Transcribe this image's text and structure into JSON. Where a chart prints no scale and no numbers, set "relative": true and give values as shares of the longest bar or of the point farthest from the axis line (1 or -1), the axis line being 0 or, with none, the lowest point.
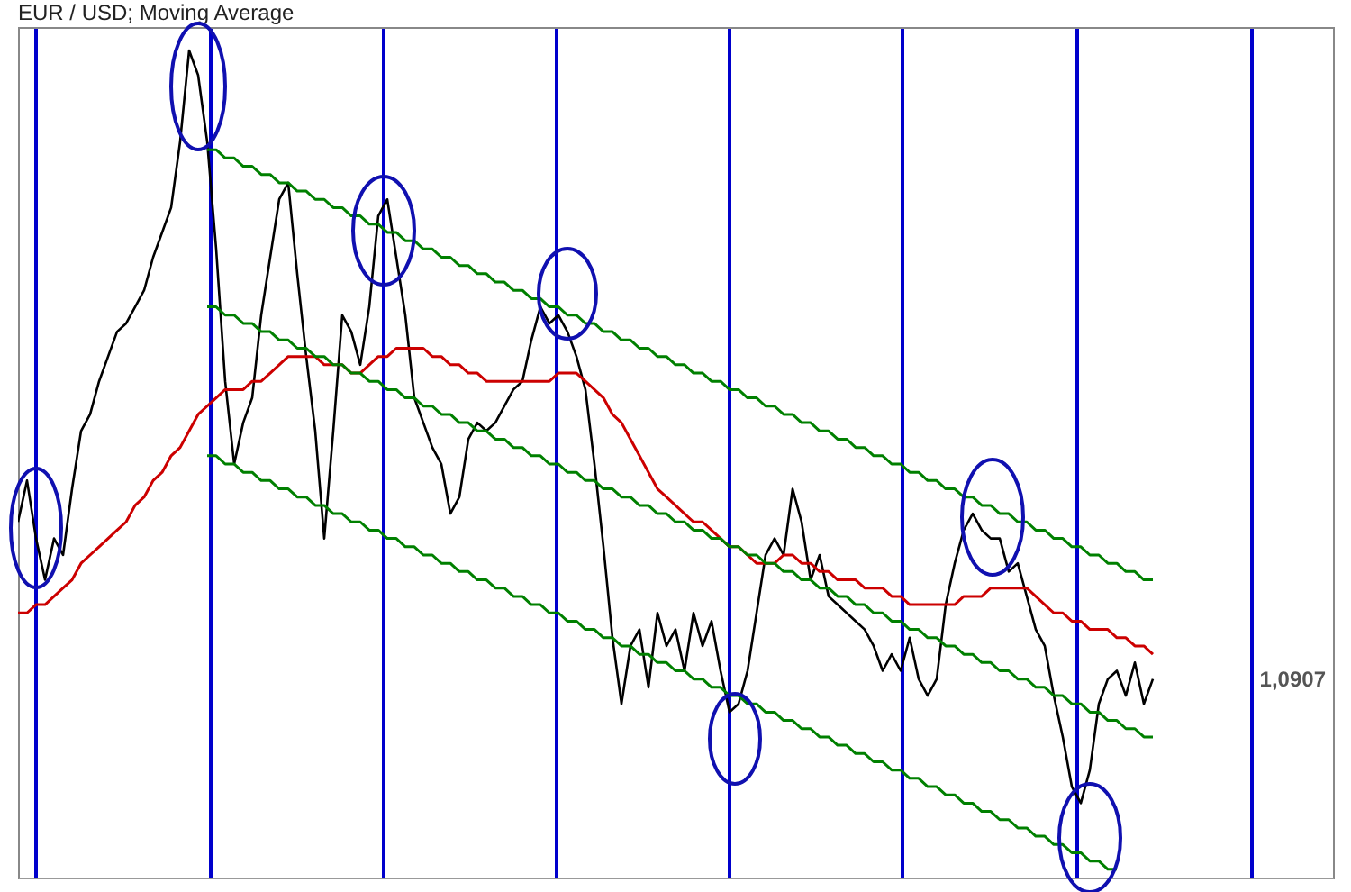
{
  "chart_data": {
    "type": "line",
    "title": "EUR / USD; Moving Average",
    "relative": true,
    "legend": false,
    "categories": [
      null,
      null,
      null,
      null,
      null,
      null,
      null,
      null,
      null,
      null,
      null,
      null,
      null,
      null,
      null,
      null,
      null,
      null,
      null,
      null,
      null,
      null,
      null,
      null,
      null,
      null,
      null,
      null,
      null,
      null,
      null,
      null,
      null,
      null,
      null,
      null,
      null,
      null,
      null,
      null,
      null,
      null,
      null,
      null,
      null,
      null,
      null,
      null,
      null,
      null,
      null,
      null,
      null,
      null,
      null,
      null,
      null,
      null,
      null,
      null,
      null,
      null,
      null,
      null,
      null,
      null,
      null,
      null,
      null,
      null,
      null,
      null,
      null,
      null,
      null,
      null,
      null,
      null,
      null,
      null,
      null,
      null,
      null,
      null,
      null,
      null,
      null,
      null,
      null,
      null,
      null,
      null,
      null,
      null,
      null,
      null,
      null,
      null,
      null,
      null,
      null,
      null,
      null,
      null,
      null,
      null,
      null,
      null,
      null,
      null,
      null,
      null,
      null,
      null,
      null,
      null,
      null,
      null,
      null,
      null,
      null,
      null,
      null,
      null,
      null,
      null,
      null,
      null,
      null,
      null,
      null,
      null,
      null,
      null,
      null,
      null,
      null,
      null,
      null,
      null,
      null,
      null,
      null,
      null,
      null,
      null,
      null
    ],
    "series": [
      {
        "color": "#000000",
        "values": [
          0.43,
          0.48,
          0.41,
          0.36,
          0.41,
          0.39,
          0.47,
          0.54,
          0.56,
          0.6,
          0.63,
          0.66,
          0.67,
          0.69,
          0.71,
          0.75,
          0.78,
          0.81,
          0.89,
          1.0,
          0.97,
          0.89,
          0.76,
          0.6,
          0.5,
          0.55,
          0.58,
          0.68,
          0.75,
          0.82,
          0.84,
          0.73,
          0.63,
          0.54,
          0.41,
          0.54,
          0.68,
          0.66,
          0.62,
          0.69,
          0.8,
          0.82,
          0.75,
          0.68,
          0.58,
          0.55,
          0.52,
          0.5,
          0.44,
          0.46,
          0.53,
          0.55,
          0.54,
          0.55,
          0.57,
          0.59,
          0.6,
          0.65,
          0.69,
          0.67,
          0.68,
          0.66,
          0.63,
          0.59,
          0.5,
          0.4,
          0.29,
          0.21,
          0.28,
          0.3,
          0.23,
          0.32,
          0.28,
          0.3,
          0.25,
          0.32,
          0.28,
          0.31,
          0.25,
          0.2,
          0.21,
          0.25,
          0.32,
          0.39,
          0.41,
          0.39,
          0.47,
          0.43,
          0.36,
          0.39,
          0.34,
          0.33,
          0.32,
          0.31,
          0.3,
          0.28,
          0.25,
          0.27,
          0.25,
          0.29,
          0.24,
          0.22,
          0.24,
          0.33,
          0.38,
          0.42,
          0.44,
          0.42,
          0.41,
          0.41,
          0.37,
          0.38,
          0.34,
          0.3,
          0.28,
          0.22,
          0.17,
          0.11,
          0.09,
          0.13,
          0.21,
          0.24,
          0.25,
          0.22,
          0.26,
          0.21,
          0.24,
          null,
          null,
          null,
          null,
          null,
          null,
          null,
          null,
          null,
          null,
          null,
          null,
          null,
          null,
          null,
          null,
          null,
          null,
          null,
          null
        ]
      },
      {
        "color": "#cc0000",
        "values": [
          0.32,
          0.32,
          0.33,
          0.33,
          0.34,
          0.35,
          0.36,
          0.38,
          0.39,
          0.4,
          0.41,
          0.42,
          0.43,
          0.45,
          0.46,
          0.48,
          0.49,
          0.51,
          0.52,
          0.54,
          0.56,
          0.57,
          0.58,
          0.59,
          0.59,
          0.59,
          0.6,
          0.6,
          0.61,
          0.62,
          0.63,
          0.63,
          0.63,
          0.63,
          0.62,
          0.62,
          0.62,
          0.61,
          0.61,
          0.62,
          0.63,
          0.63,
          0.64,
          0.64,
          0.64,
          0.64,
          0.63,
          0.63,
          0.62,
          0.62,
          0.61,
          0.61,
          0.6,
          0.6,
          0.6,
          0.6,
          0.6,
          0.6,
          0.6,
          0.6,
          0.61,
          0.61,
          0.61,
          0.6,
          0.59,
          0.58,
          0.56,
          0.55,
          0.53,
          0.51,
          0.49,
          0.47,
          0.46,
          0.45,
          0.44,
          0.43,
          0.43,
          0.42,
          0.41,
          0.4,
          0.4,
          0.39,
          0.38,
          0.38,
          0.38,
          0.39,
          0.39,
          0.38,
          0.38,
          0.37,
          0.37,
          0.36,
          0.36,
          0.36,
          0.35,
          0.35,
          0.35,
          0.34,
          0.34,
          0.33,
          0.33,
          0.33,
          0.33,
          0.33,
          0.33,
          0.34,
          0.34,
          0.34,
          0.35,
          0.35,
          0.35,
          0.35,
          0.35,
          0.34,
          0.33,
          0.32,
          0.32,
          0.31,
          0.31,
          0.3,
          0.3,
          0.3,
          0.29,
          0.29,
          0.28,
          0.28,
          0.27,
          null,
          null,
          null,
          null,
          null,
          null,
          null,
          null,
          null,
          null,
          null,
          null,
          null,
          null,
          null,
          null,
          null,
          null,
          null,
          null
        ]
      },
      {
        "color": "#008000",
        "values": [
          null,
          null,
          null,
          null,
          null,
          null,
          null,
          null,
          null,
          null,
          null,
          null,
          null,
          null,
          null,
          null,
          null,
          null,
          null,
          null,
          null,
          0.88,
          0.88,
          0.87,
          0.87,
          0.86,
          0.86,
          0.85,
          0.85,
          0.84,
          0.84,
          0.83,
          0.83,
          0.82,
          0.82,
          0.81,
          0.81,
          0.8,
          0.8,
          0.79,
          0.79,
          0.78,
          0.78,
          0.77,
          0.77,
          0.76,
          0.76,
          0.75,
          0.75,
          0.74,
          0.74,
          0.73,
          0.73,
          0.72,
          0.72,
          0.71,
          0.71,
          0.7,
          0.7,
          0.69,
          0.69,
          0.68,
          0.68,
          0.67,
          0.67,
          0.66,
          0.66,
          0.65,
          0.65,
          0.64,
          0.64,
          0.63,
          0.63,
          0.62,
          0.62,
          0.61,
          0.61,
          0.6,
          0.6,
          0.59,
          0.59,
          0.58,
          0.58,
          0.57,
          0.57,
          0.56,
          0.56,
          0.55,
          0.55,
          0.54,
          0.54,
          0.53,
          0.53,
          0.52,
          0.52,
          0.51,
          0.51,
          0.5,
          0.5,
          0.49,
          0.49,
          0.48,
          0.48,
          0.47,
          0.47,
          0.46,
          0.46,
          0.45,
          0.45,
          0.44,
          0.44,
          0.43,
          0.43,
          0.42,
          0.42,
          0.41,
          0.41,
          0.4,
          0.4,
          0.39,
          0.39,
          0.38,
          0.38,
          0.37,
          0.37,
          0.36,
          0.36,
          null,
          null,
          null,
          null,
          null,
          null,
          null,
          null,
          null,
          null,
          null,
          null,
          null,
          null,
          null,
          null,
          null,
          null,
          null,
          null
        ]
      },
      {
        "color": "#008000",
        "values": [
          null,
          null,
          null,
          null,
          null,
          null,
          null,
          null,
          null,
          null,
          null,
          null,
          null,
          null,
          null,
          null,
          null,
          null,
          null,
          null,
          null,
          0.69,
          0.69,
          0.68,
          0.68,
          0.67,
          0.67,
          0.66,
          0.66,
          0.65,
          0.65,
          0.64,
          0.64,
          0.63,
          0.63,
          0.62,
          0.62,
          0.61,
          0.61,
          0.6,
          0.6,
          0.59,
          0.59,
          0.58,
          0.58,
          0.57,
          0.57,
          0.56,
          0.56,
          0.55,
          0.55,
          0.54,
          0.54,
          0.53,
          0.53,
          0.52,
          0.52,
          0.51,
          0.51,
          0.5,
          0.5,
          0.49,
          0.49,
          0.48,
          0.48,
          0.47,
          0.47,
          0.46,
          0.46,
          0.45,
          0.45,
          0.44,
          0.44,
          0.43,
          0.43,
          0.42,
          0.42,
          0.41,
          0.41,
          0.4,
          0.4,
          0.39,
          0.39,
          0.38,
          0.38,
          0.37,
          0.37,
          0.36,
          0.36,
          0.35,
          0.35,
          0.34,
          0.34,
          0.33,
          0.33,
          0.32,
          0.32,
          0.31,
          0.31,
          0.3,
          0.3,
          0.29,
          0.29,
          0.28,
          0.28,
          0.27,
          0.27,
          0.26,
          0.26,
          0.25,
          0.25,
          0.24,
          0.24,
          0.23,
          0.23,
          0.22,
          0.22,
          0.21,
          0.21,
          0.2,
          0.2,
          0.19,
          0.19,
          0.18,
          0.18,
          0.17,
          0.17,
          null,
          null,
          null,
          null,
          null,
          null,
          null,
          null,
          null,
          null,
          null,
          null,
          null,
          null,
          null,
          null,
          null,
          null,
          null,
          null
        ]
      },
      {
        "color": "#008000",
        "values": [
          null,
          null,
          null,
          null,
          null,
          null,
          null,
          null,
          null,
          null,
          null,
          null,
          null,
          null,
          null,
          null,
          null,
          null,
          null,
          null,
          null,
          0.51,
          0.51,
          0.5,
          0.5,
          0.49,
          0.49,
          0.48,
          0.48,
          0.47,
          0.47,
          0.46,
          0.46,
          0.45,
          0.45,
          0.44,
          0.44,
          0.43,
          0.43,
          0.42,
          0.42,
          0.41,
          0.41,
          0.4,
          0.4,
          0.39,
          0.39,
          0.38,
          0.38,
          0.37,
          0.37,
          0.36,
          0.36,
          0.35,
          0.35,
          0.34,
          0.34,
          0.33,
          0.33,
          0.32,
          0.32,
          0.31,
          0.31,
          0.3,
          0.3,
          0.29,
          0.29,
          0.28,
          0.28,
          0.27,
          0.27,
          0.26,
          0.26,
          0.25,
          0.25,
          0.24,
          0.24,
          0.23,
          0.23,
          0.22,
          0.22,
          0.21,
          0.21,
          0.2,
          0.2,
          0.19,
          0.19,
          0.18,
          0.18,
          0.17,
          0.17,
          0.16,
          0.16,
          0.15,
          0.15,
          0.14,
          0.14,
          0.13,
          0.13,
          0.12,
          0.12,
          0.11,
          0.11,
          0.1,
          0.1,
          0.09,
          0.09,
          0.08,
          0.08,
          0.07,
          0.07,
          0.06,
          0.06,
          0.05,
          0.05,
          0.04,
          0.04,
          0.03,
          0.03,
          0.02,
          0.02,
          0.01,
          0.01,
          null,
          null,
          null,
          null,
          null,
          null,
          null,
          null,
          null,
          null,
          null,
          null,
          null,
          null,
          null,
          null,
          null,
          null,
          null,
          null,
          null,
          null,
          null,
          null
        ]
      }
    ],
    "annotations": [
      "1,0907"
    ]
  }
}
